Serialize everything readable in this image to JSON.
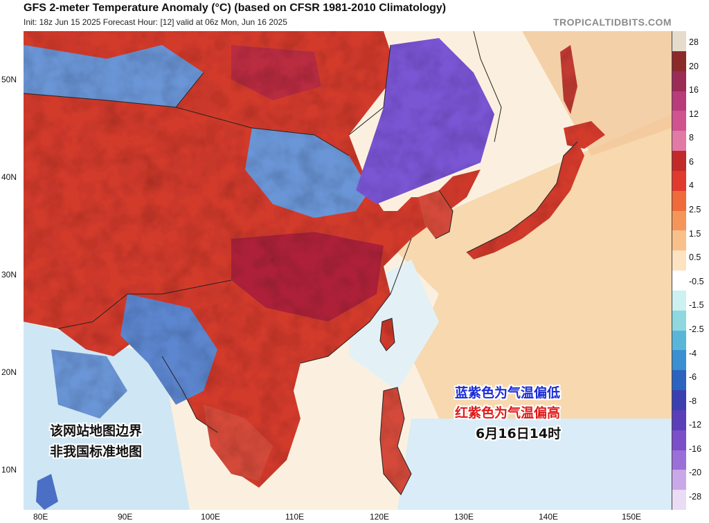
{
  "header": {
    "title": "GFS 2-meter Temperature Anomaly (°C) (based on CFSR 1981-2010 Climatology)",
    "subtitle": "Init: 18z Jun 15 2025   Forecast Hour: [12]   valid at 06z Mon, Jun 16 2025",
    "brand": "TROPICALTIDBITS.COM"
  },
  "map": {
    "lat_labels": [
      "50N",
      "40N",
      "30N",
      "20N",
      "10N"
    ],
    "lon_labels": [
      "80E",
      "90E",
      "100E",
      "110E",
      "120E",
      "130E",
      "140E",
      "150E"
    ],
    "colors": {
      "land_warm": "#d23a2c",
      "land_hot": "#a81e3c",
      "land_cool": "#6a95d6",
      "cold_purple": "#7a55d4",
      "ocean_warm": "#f6d3a7",
      "ocean_neutral": "#fbf0df",
      "ocean_cool": "#cfe6f5",
      "border": "#222222"
    }
  },
  "colorbar": {
    "labels": [
      "28",
      "20",
      "16",
      "12",
      "8",
      "6",
      "4",
      "2.5",
      "1.5",
      "0.5",
      "-0.5",
      "-1.5",
      "-2.5",
      "-4",
      "-6",
      "-8",
      "-12",
      "-16",
      "-20",
      "-28"
    ],
    "colors": [
      "#e6dccb",
      "#8c2a2a",
      "#9a2c55",
      "#b83b7a",
      "#d0528e",
      "#e27aa6",
      "#c22a2a",
      "#e03a2e",
      "#f06a3a",
      "#f5955a",
      "#f9c08a",
      "#fde3c0",
      "#ffffff",
      "#cdf0f0",
      "#8fd8e0",
      "#5ab6d8",
      "#3a8fd0",
      "#2b63bf",
      "#3b3fb0",
      "#5a3fb8",
      "#7b4fc8",
      "#9b6fd8",
      "#c9a8e8",
      "#e9dcf4"
    ]
  },
  "annotations": {
    "blue_text": "蓝紫色为气温偏低",
    "red_text": "红紫色为气温偏高",
    "date_text": "6月16日14时",
    "disclaimer_line1": "该网站地图边界",
    "disclaimer_line2": "非我国标准地图"
  }
}
